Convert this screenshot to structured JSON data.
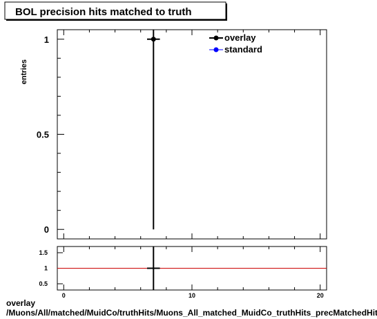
{
  "title": "BOL precision hits matched to truth",
  "footer": {
    "line1": "overlay",
    "line2": "/Muons/All/matched/MuidCo/truthHits/Muons_All_matched_MuidCo_truthHits_precMatchedHitsBOL"
  },
  "colors": {
    "overlay": "#000000",
    "standard": "#0000ff",
    "ratio_line": "#cc0000",
    "background": "#ffffff"
  },
  "chart_data": [
    {
      "type": "scatter",
      "panel": "main",
      "title": "BOL precision hits matched to truth",
      "xlabel": "",
      "ylabel": "entries",
      "xlim": [
        -0.5,
        20.5
      ],
      "ylim": [
        -0.05,
        1.05
      ],
      "y_ticks": [
        0,
        0.5,
        1
      ],
      "y_tick_labels": [
        "0",
        "0.5",
        "1"
      ],
      "legend_position": "top-right",
      "series": [
        {
          "name": "overlay",
          "color": "#000000",
          "points": [
            {
              "x": 7,
              "y": 1,
              "xerr": 0.5,
              "yerr_low": 1,
              "yerr_high": 0.05
            }
          ]
        },
        {
          "name": "standard",
          "color": "#0000ff",
          "points": []
        }
      ]
    },
    {
      "type": "line",
      "panel": "ratio",
      "xlim": [
        -0.5,
        20.5
      ],
      "ylim": [
        0.3,
        1.7
      ],
      "y_ticks": [
        0.5,
        1,
        1.5
      ],
      "y_tick_labels": [
        "0.5",
        "1",
        "1.5"
      ],
      "x_ticks": [
        0,
        10,
        20
      ],
      "x_tick_labels": [
        "0",
        "10",
        "20"
      ],
      "xlabel": "",
      "reference_line": 1,
      "points": [
        {
          "x": 7,
          "y": 1,
          "xerr": 0.5
        }
      ]
    }
  ]
}
